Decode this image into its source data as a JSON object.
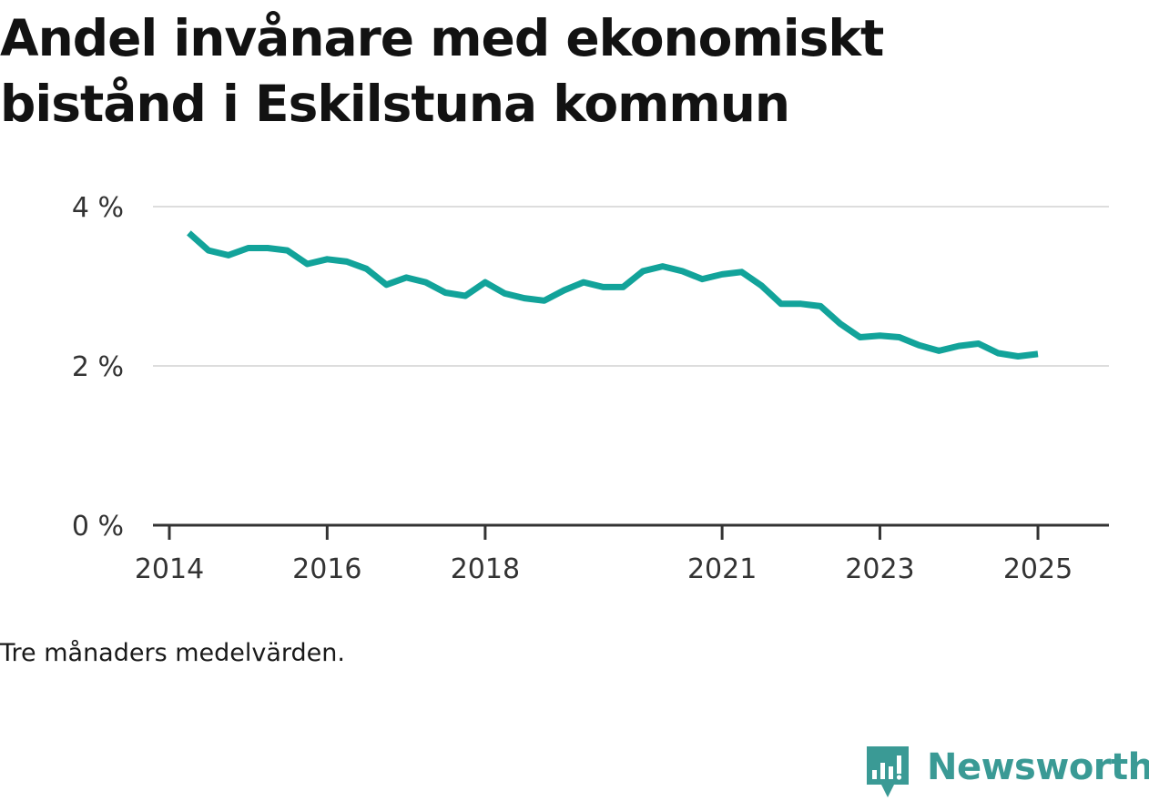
{
  "title": "Andel invånare med ekonomiskt bistånd i Eskilstuna kommun",
  "note": "Tre månaders medelvärden.",
  "brand": {
    "name": "Newsworthy",
    "icon": "newsworthy-logo-icon",
    "color": "#3a9a95"
  },
  "chart_data": {
    "type": "line",
    "title": "Andel invånare med ekonomiskt bistånd i Eskilstuna kommun",
    "xlabel": "",
    "ylabel": "",
    "x_ticks": [
      "2014",
      "2016",
      "2018",
      "2021",
      "2023",
      "2025"
    ],
    "y_ticks": [
      "0 %",
      "2 %",
      "4 %"
    ],
    "ylim": [
      0,
      4
    ],
    "xlim": [
      "2014-01-01",
      "2025-07-01"
    ],
    "grid": true,
    "line_color": "#12a39a",
    "series": [
      {
        "x": [
          "2014-04-01",
          "2014-07-01",
          "2014-10-01",
          "2015-01-01",
          "2015-04-01",
          "2015-07-01",
          "2015-10-01",
          "2016-01-01",
          "2016-04-01",
          "2016-07-01",
          "2016-10-01",
          "2017-01-01",
          "2017-04-01",
          "2017-07-01",
          "2017-10-01",
          "2018-01-01",
          "2018-04-01",
          "2018-07-01",
          "2018-10-01",
          "2019-01-01",
          "2019-04-01",
          "2019-07-01",
          "2019-10-01",
          "2020-01-01",
          "2020-04-01",
          "2020-07-01",
          "2020-10-01",
          "2021-01-01",
          "2021-04-01",
          "2021-07-01",
          "2021-10-01",
          "2022-01-01",
          "2022-04-01",
          "2022-07-01",
          "2022-10-01",
          "2023-01-01",
          "2023-04-01",
          "2023-07-01",
          "2023-10-01",
          "2024-01-01",
          "2024-04-01",
          "2024-07-01",
          "2024-10-01",
          "2025-01-01"
        ],
        "values": [
          3.67,
          3.45,
          3.39,
          3.48,
          3.48,
          3.45,
          3.28,
          3.34,
          3.31,
          3.22,
          3.02,
          3.11,
          3.05,
          2.92,
          2.88,
          3.05,
          2.91,
          2.85,
          2.82,
          2.95,
          3.05,
          2.99,
          2.99,
          3.19,
          3.25,
          3.19,
          3.09,
          3.15,
          3.18,
          3.01,
          2.78,
          2.78,
          2.75,
          2.53,
          2.36,
          2.38,
          2.36,
          2.26,
          2.19,
          2.25,
          2.28,
          2.16,
          2.12,
          2.15
        ]
      }
    ]
  }
}
